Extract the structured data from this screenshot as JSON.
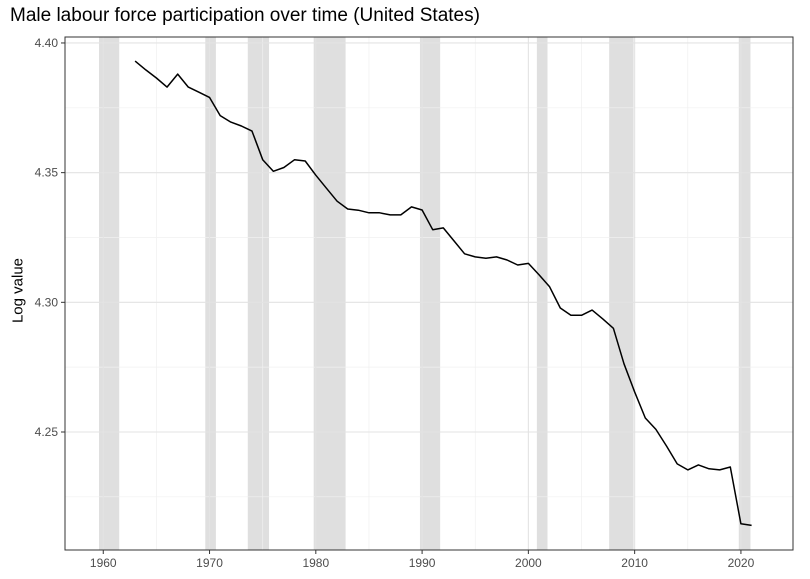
{
  "chart_data": {
    "type": "line",
    "title": "Male labour force participation over time (United States)",
    "xlabel": "",
    "ylabel": "Log value",
    "xlim": [
      1956.4,
      2024.9
    ],
    "ylim": [
      4.2045,
      4.4023
    ],
    "x_ticks": [
      1960,
      1970,
      1980,
      1990,
      2000,
      2010,
      2020
    ],
    "y_ticks": [
      4.25,
      4.3,
      4.35,
      4.4
    ],
    "y_tick_labels": [
      "4.25",
      "4.30",
      "4.35",
      "4.40"
    ],
    "grid": true,
    "line_color": "#000000",
    "shade_color": "#d9d9d9",
    "shaded_periods": [
      [
        1959.6,
        1961.5
      ],
      [
        1969.6,
        1970.6
      ],
      [
        1973.6,
        1975.6
      ],
      [
        1979.8,
        1982.8
      ],
      [
        1989.8,
        1991.7
      ],
      [
        2000.8,
        2001.8
      ],
      [
        2007.6,
        2009.9
      ],
      [
        2019.8,
        2020.9
      ]
    ],
    "x": [
      1963,
      1964,
      1965,
      1966,
      1967,
      1968,
      1969,
      1970,
      1971,
      1972,
      1973,
      1974,
      1975,
      1976,
      1977,
      1978,
      1979,
      1980,
      1981,
      1982,
      1983,
      1984,
      1985,
      1986,
      1987,
      1988,
      1989,
      1990,
      1991,
      1992,
      1993,
      1994,
      1995,
      1996,
      1997,
      1998,
      1999,
      2000,
      2001,
      2002,
      2003,
      2004,
      2005,
      2006,
      2007,
      2008,
      2009,
      2010,
      2011,
      2012,
      2013,
      2014,
      2015,
      2016,
      2017,
      2018,
      2019,
      2020,
      2021
    ],
    "values": [
      4.393,
      4.3896,
      4.3865,
      4.383,
      4.388,
      4.383,
      4.381,
      4.379,
      4.372,
      4.3695,
      4.368,
      4.366,
      4.355,
      4.3505,
      4.352,
      4.355,
      4.3545,
      4.349,
      4.344,
      4.339,
      4.336,
      4.3355,
      4.3345,
      4.3345,
      4.3337,
      4.3337,
      4.3368,
      4.3356,
      4.328,
      4.3287,
      4.3237,
      4.3187,
      4.3175,
      4.317,
      4.3175,
      4.3163,
      4.3144,
      4.315,
      4.3106,
      4.306,
      4.2978,
      4.295,
      4.295,
      4.297,
      4.2936,
      4.29,
      4.2763,
      4.2655,
      4.2554,
      4.251,
      4.2446,
      4.2377,
      4.2354,
      4.2373,
      4.2358,
      4.2354,
      4.2365,
      4.2146,
      4.214
    ]
  }
}
